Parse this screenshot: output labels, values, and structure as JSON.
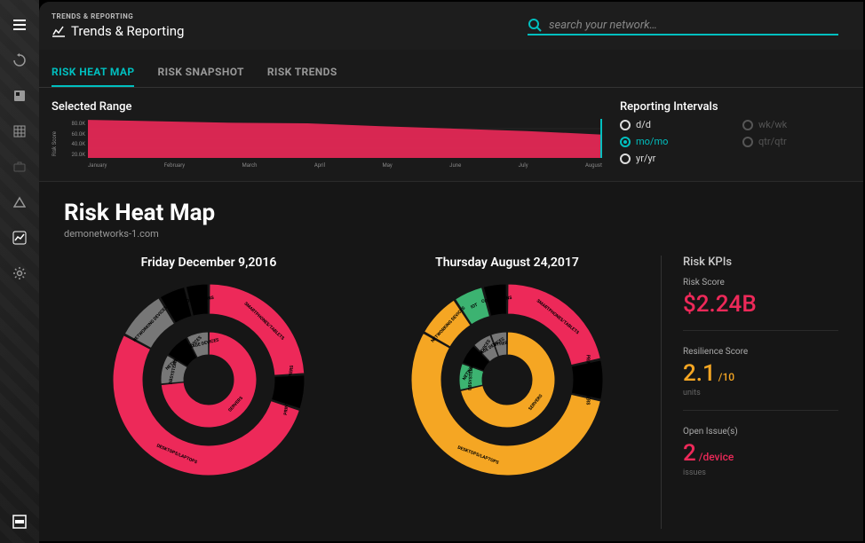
{
  "breadcrumb": {
    "small": "TRENDS & REPORTING",
    "title": "Trends & Reporting"
  },
  "search": {
    "placeholder": "search your network…"
  },
  "tabs": [
    {
      "label": "RISK HEAT MAP",
      "active": true
    },
    {
      "label": "RISK SNAPSHOT",
      "active": false
    },
    {
      "label": "RISK TRENDS",
      "active": false
    }
  ],
  "range": {
    "title": "Selected Range",
    "y_label": "Risk Score",
    "y_ticks": [
      "80.0K",
      "60.0K",
      "40.0K",
      "20.0K"
    ],
    "months": [
      "January",
      "February",
      "March",
      "April",
      "May",
      "June",
      "July",
      "August"
    ],
    "area_values": [
      78,
      75,
      72,
      71,
      65,
      60,
      55,
      48
    ],
    "y_max": 80,
    "area_color": "#ed2959",
    "grid_color": "#444",
    "cursor_color": "#00bfbf"
  },
  "intervals": {
    "title": "Reporting Intervals",
    "options": [
      {
        "label": "d/d",
        "enabled": true,
        "selected": false
      },
      {
        "label": "wk/wk",
        "enabled": false,
        "selected": false
      },
      {
        "label": "mo/mo",
        "enabled": true,
        "selected": true
      },
      {
        "label": "qtr/qtr",
        "enabled": false,
        "selected": false
      },
      {
        "label": "yr/yr",
        "enabled": true,
        "selected": false
      }
    ]
  },
  "page": {
    "title": "Risk Heat Map",
    "subtitle": "demonetworks-1.com"
  },
  "donuts": [
    {
      "title": "Friday December 9,2016",
      "outer": [
        {
          "label": "SMARTPHONES/TABLETS",
          "value": 73,
          "color": "#ed2959",
          "hatch": false
        },
        {
          "label": "PRINTERS/FAX/COPIERS",
          "value": 18,
          "color": "#ed2959",
          "hatch": true
        },
        {
          "label": "DESKTOPS/LAPTOPS",
          "value": 160,
          "color": "#ed2959",
          "hatch": false
        },
        {
          "label": "NETWORKING DEVICES",
          "value": 26,
          "color": "#777",
          "hatch": false
        },
        {
          "label": "IOT",
          "value": 14,
          "color": "#777",
          "hatch": true
        },
        {
          "label": "CONNECTIONS",
          "value": 12,
          "color": "#ed2959",
          "hatch": true
        }
      ],
      "inner": [
        {
          "label": "SERVERS",
          "value": 144,
          "color": "#ed2959",
          "hatch": false
        },
        {
          "label": "DBSYSTEMS",
          "value": 20,
          "color": "#777",
          "hatch": false
        },
        {
          "label": "NETWORKING DEVICES",
          "value": 17,
          "color": "#777",
          "hatch": true
        },
        {
          "label": "STORAGE DEVICES",
          "value": 15,
          "color": "#777",
          "hatch": false
        }
      ]
    },
    {
      "title": "Thursday August 24,2017",
      "outer": [
        {
          "label": "SMARTPHONES/TABLETS",
          "value": 63,
          "color": "#ed2959",
          "hatch": false
        },
        {
          "label": "PRINTERS/FAX/COPIERS",
          "value": 20,
          "color": "#ed2959",
          "hatch": true
        },
        {
          "label": "DESKTOPS/LAPTOPS",
          "value": 160,
          "color": "#f5a623",
          "hatch": false
        },
        {
          "label": "NETWORKING DEVICES",
          "value": 22,
          "color": "#f5a623",
          "hatch": false
        },
        {
          "label": "IOT",
          "value": 15,
          "color": "#3cb371",
          "hatch": false
        },
        {
          "label": "CONNECTIONS",
          "value": 12,
          "color": "#ed2959",
          "hatch": true
        }
      ],
      "inner": [
        {
          "label": "SERVERS",
          "value": 140,
          "color": "#f5a623",
          "hatch": false
        },
        {
          "label": "DBSYSTEMS",
          "value": 18,
          "color": "#3cb371",
          "hatch": false
        },
        {
          "label": "NETWORKING DEVICES",
          "value": 14,
          "color": "#777",
          "hatch": true
        },
        {
          "label": "STORAGE DEVICES",
          "value": 13,
          "color": "#777",
          "hatch": false
        },
        {
          "label": "OTHER",
          "value": 11,
          "color": "#777",
          "hatch": false
        }
      ]
    }
  ],
  "donut_style": {
    "outer_r": 108,
    "outer_w": 34,
    "inner_r": 54,
    "inner_w": 26,
    "bg": "#161616",
    "gap_deg": 0.5,
    "label_fontsize": 5,
    "title_fontsize": 14
  },
  "kpis": {
    "heading": "Risk KPIs",
    "items": [
      {
        "label": "Risk Score",
        "value": "$2.24B",
        "suffix": "",
        "unit": "",
        "color": "#ed2959"
      },
      {
        "label": "Resilience Score",
        "value": "2.1",
        "suffix": "/10",
        "unit": "units",
        "color": "#f5a623"
      },
      {
        "label": "Open Issue(s)",
        "value": "2",
        "suffix": "/device",
        "unit": "issues",
        "color": "#ed2959"
      }
    ]
  },
  "colors": {
    "accent": "#00bfbf",
    "bg": "#1a1a1a",
    "panel": "#161616",
    "text": "#fff",
    "muted": "#999"
  }
}
